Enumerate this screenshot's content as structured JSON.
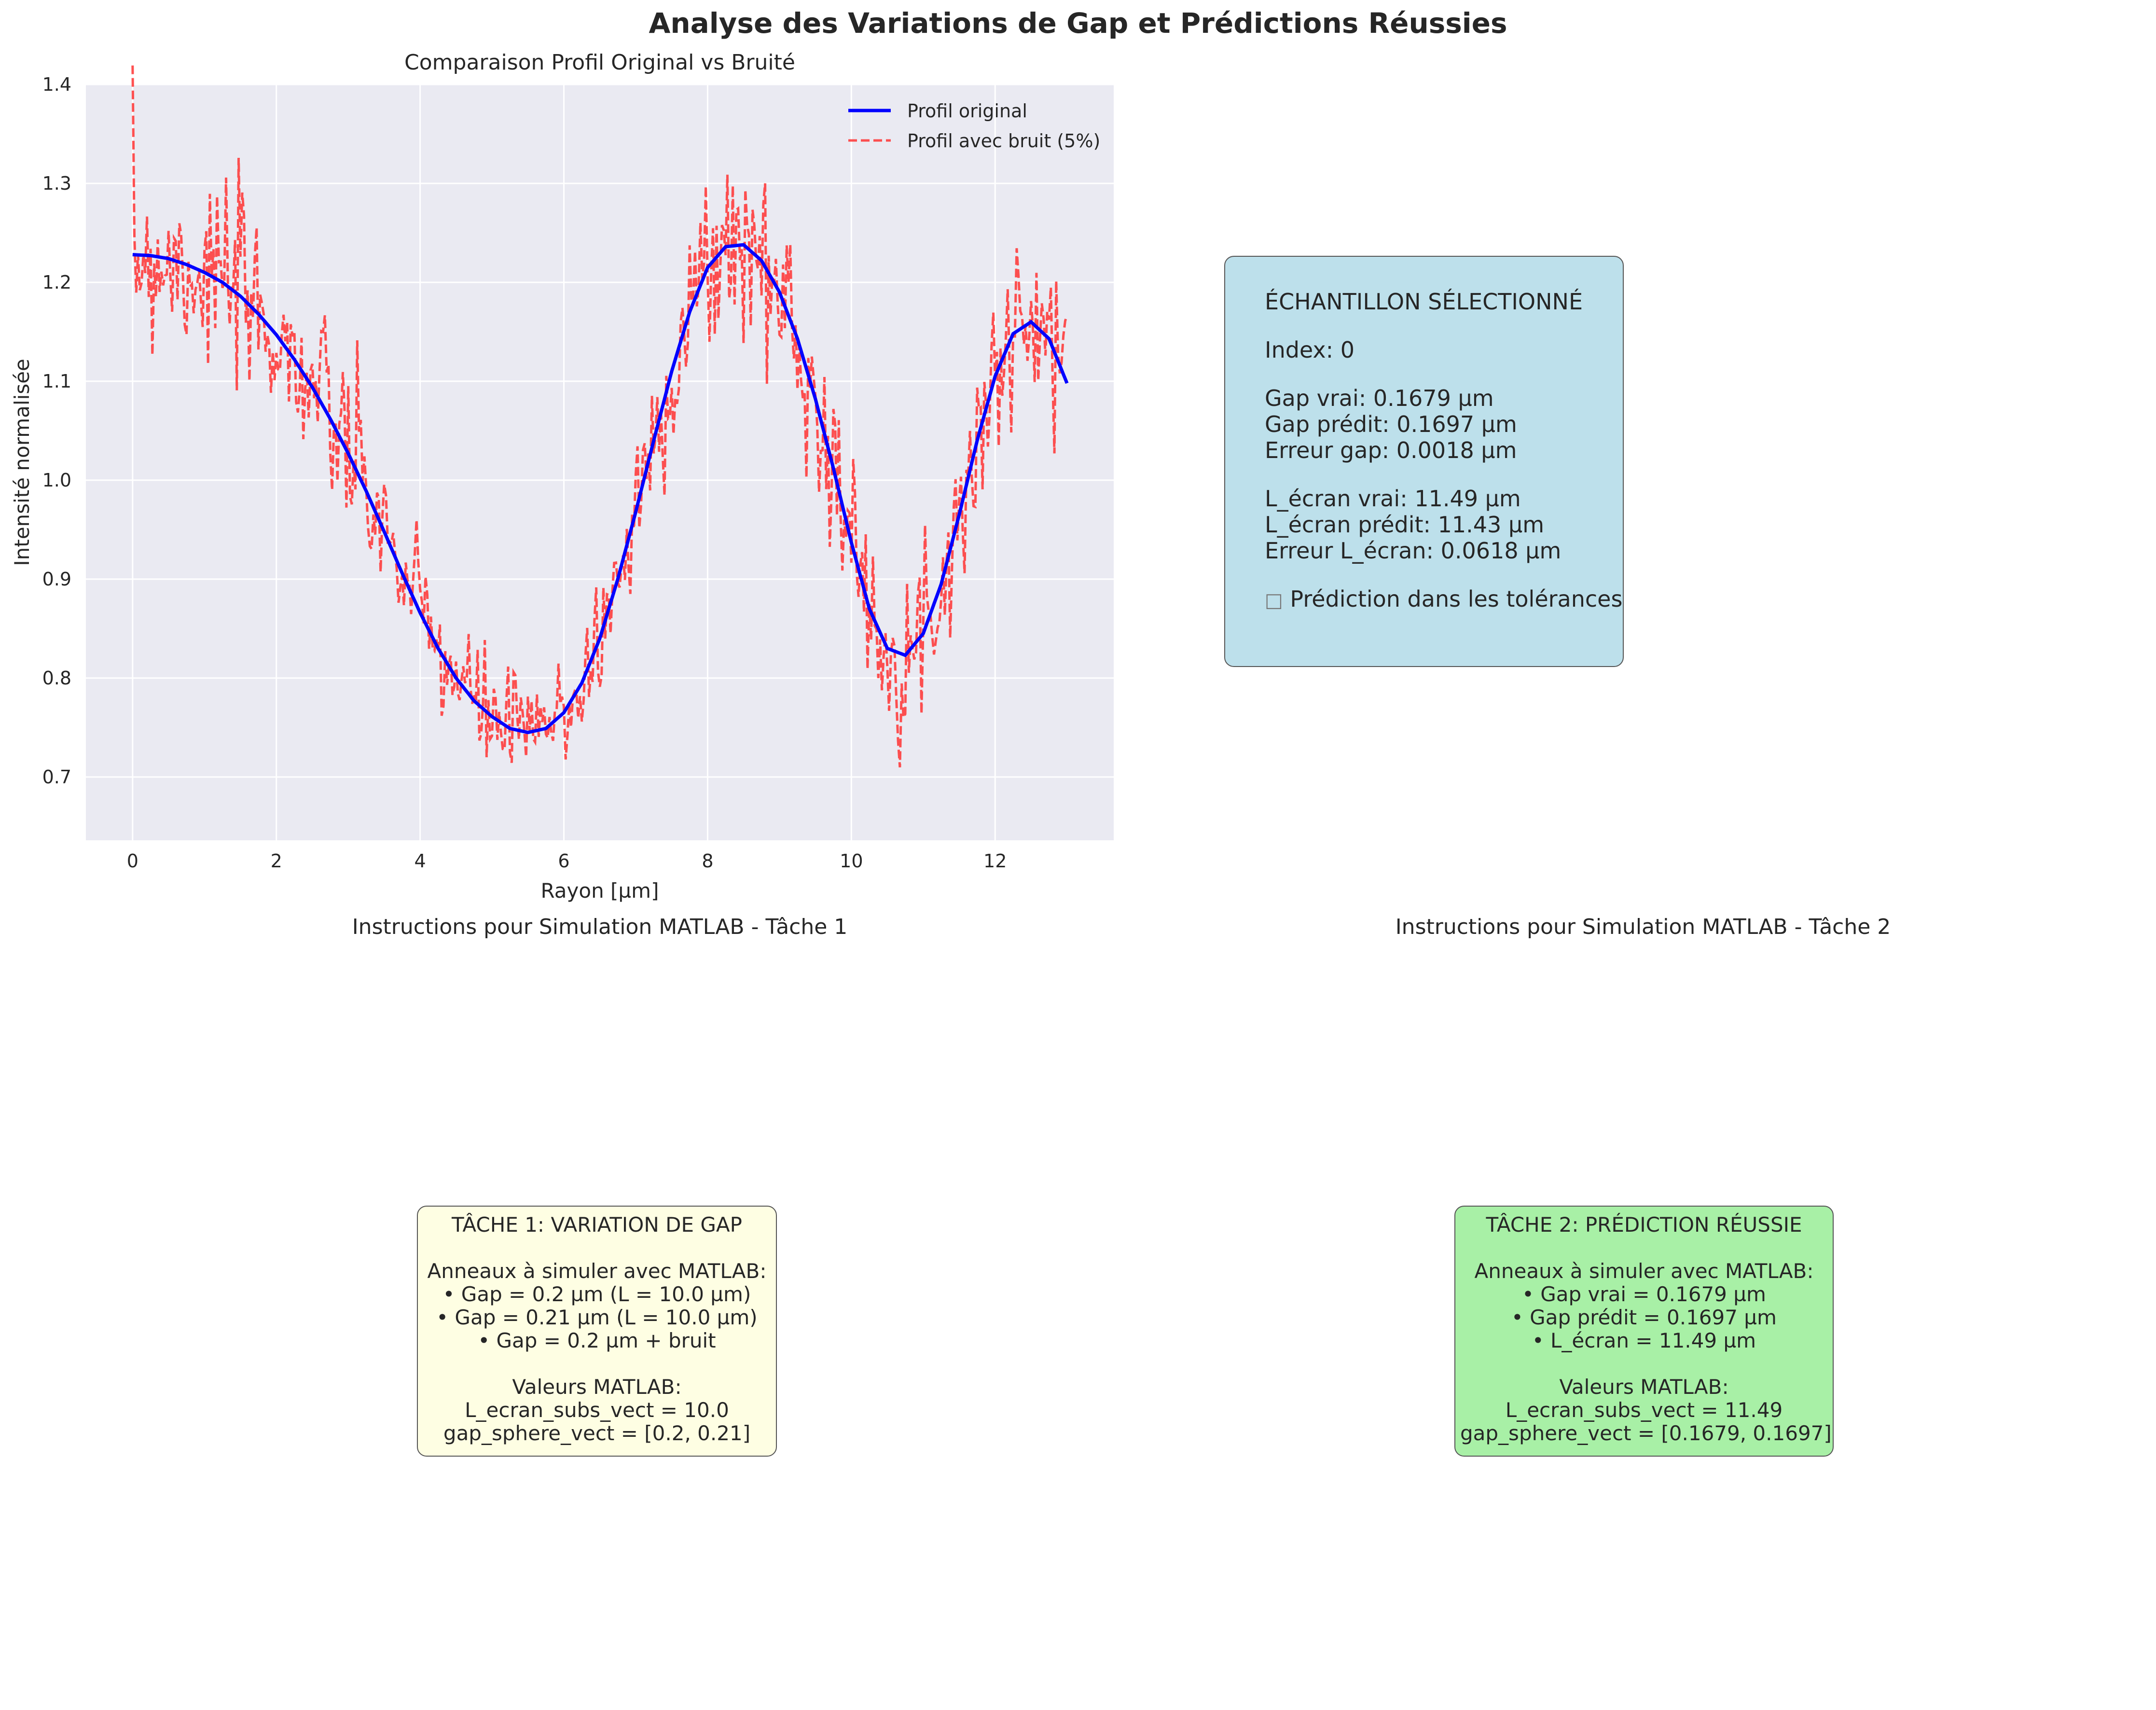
{
  "figure": {
    "title": "Analyse des Variations de Gap et Prédictions Réussies"
  },
  "chart_data": {
    "type": "line",
    "title": "Comparaison Profil Original vs Bruité",
    "xlabel": "Rayon [µm]",
    "ylabel": "Intensité normalisée",
    "xlim": [
      -0.65,
      13.65
    ],
    "ylim": [
      0.636,
      1.4
    ],
    "xticks": [
      0,
      2,
      4,
      6,
      8,
      10,
      12
    ],
    "yticks": [
      0.7,
      0.8,
      0.9,
      1.0,
      1.1,
      1.2,
      1.3,
      1.4
    ],
    "xtick_labels": [
      "0",
      "2",
      "4",
      "6",
      "8",
      "10",
      "12"
    ],
    "ytick_labels": [
      "0.7",
      "0.8",
      "0.9",
      "1.0",
      "1.1",
      "1.2",
      "1.3",
      "1.4"
    ],
    "grid": true,
    "legend_position": "upper right",
    "series": [
      {
        "name": "Profil original",
        "style": "solid",
        "color": "#0000ff",
        "points": [
          [
            0,
            1.228
          ],
          [
            0.25,
            1.227
          ],
          [
            0.5,
            1.224
          ],
          [
            0.75,
            1.218
          ],
          [
            1.0,
            1.21
          ],
          [
            1.25,
            1.2
          ],
          [
            1.5,
            1.186
          ],
          [
            1.75,
            1.168
          ],
          [
            2.0,
            1.147
          ],
          [
            2.25,
            1.122
          ],
          [
            2.5,
            1.094
          ],
          [
            2.75,
            1.062
          ],
          [
            3.0,
            1.027
          ],
          [
            3.25,
            0.989
          ],
          [
            3.5,
            0.948
          ],
          [
            3.75,
            0.906
          ],
          [
            4.0,
            0.866
          ],
          [
            4.25,
            0.83
          ],
          [
            4.5,
            0.8
          ],
          [
            4.75,
            0.777
          ],
          [
            5.0,
            0.761
          ],
          [
            5.25,
            0.749
          ],
          [
            5.5,
            0.745
          ],
          [
            5.75,
            0.749
          ],
          [
            6.0,
            0.765
          ],
          [
            6.25,
            0.795
          ],
          [
            6.5,
            0.84
          ],
          [
            6.75,
            0.9
          ],
          [
            7.0,
            0.968
          ],
          [
            7.25,
            1.04
          ],
          [
            7.5,
            1.11
          ],
          [
            7.75,
            1.17
          ],
          [
            8.0,
            1.215
          ],
          [
            8.25,
            1.236
          ],
          [
            8.5,
            1.238
          ],
          [
            8.75,
            1.222
          ],
          [
            9.0,
            1.19
          ],
          [
            9.25,
            1.143
          ],
          [
            9.5,
            1.082
          ],
          [
            9.75,
            1.012
          ],
          [
            10.0,
            0.937
          ],
          [
            10.25,
            0.87
          ],
          [
            10.5,
            0.83
          ],
          [
            10.75,
            0.823
          ],
          [
            11.0,
            0.845
          ],
          [
            11.25,
            0.895
          ],
          [
            11.5,
            0.965
          ],
          [
            11.75,
            1.04
          ],
          [
            12.0,
            1.105
          ],
          [
            12.25,
            1.148
          ],
          [
            12.5,
            1.16
          ],
          [
            12.75,
            1.143
          ],
          [
            13.0,
            1.098
          ]
        ]
      },
      {
        "name": "Profil avec bruit (5%)",
        "style": "dashed",
        "color": "#ff3333",
        "noise_std": 0.05
      }
    ]
  },
  "sample_box": {
    "title": "ÉCHANTILLON SÉLECTIONNÉ",
    "index": "Index: 0",
    "gap_true": "Gap vrai: 0.1679 µm",
    "gap_pred": "Gap prédit: 0.1697 µm",
    "gap_err": "Erreur gap: 0.0018 µm",
    "l_true": "L_écran vrai: 11.49 µm",
    "l_pred": "L_écran prédit: 11.43 µm",
    "l_err": "Erreur L_écran: 0.0618 µm",
    "status_glyph": "□",
    "status": " Prédiction dans les tolérances"
  },
  "task1": {
    "title": "Instructions pour Simulation MATLAB - Tâche 1",
    "header": "TÂCHE 1: VARIATION DE GAP",
    "intro": "Anneaux à simuler avec MATLAB:",
    "items": [
      "• Gap = 0.2 µm (L = 10.0 µm)",
      "• Gap = 0.21 µm (L = 10.0 µm)",
      "• Gap = 0.2 µm + bruit"
    ],
    "values_title": "Valeurs MATLAB:",
    "value_l": "L_ecran_subs_vect = 10.0",
    "value_gap": "gap_sphere_vect = [0.2, 0.21]"
  },
  "task2": {
    "title": "Instructions pour Simulation MATLAB - Tâche 2",
    "header": "TÂCHE 2: PRÉDICTION RÉUSSIE",
    "intro": "Anneaux à simuler avec MATLAB:",
    "items": [
      "• Gap vrai = 0.1679 µm",
      "• Gap prédit = 0.1697 µm",
      "• L_écran = 11.49 µm"
    ],
    "values_title": "Valeurs MATLAB:",
    "value_l": "L_ecran_subs_vect = 11.49",
    "value_gap": "gap_sphere_vect = [0.1679, 0.1697]"
  },
  "colors": {
    "axes_bg": "#eaeaf2",
    "grid": "#ffffff",
    "sample_box": "#bde0eb",
    "task1_box": "#fefee3",
    "task2_box": "#a8f0a6"
  }
}
